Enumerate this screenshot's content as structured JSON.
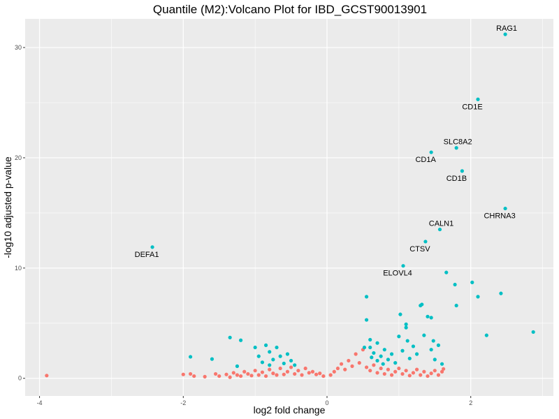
{
  "chart_data": {
    "type": "scatter",
    "title": "Quantile (M2):Volcano Plot for IBD_GCST90013901",
    "xlabel": "log2 fold change",
    "ylabel": "-log10 adjusted p-value",
    "xlim": [
      -4.2,
      3.15
    ],
    "ylim": [
      -1.6,
      32.6
    ],
    "x_ticks": [
      {
        "value": -4,
        "label": "-4"
      },
      {
        "value": -2,
        "label": "-2"
      },
      {
        "value": 0,
        "label": "0"
      },
      {
        "value": 2,
        "label": "2"
      }
    ],
    "y_ticks": [
      {
        "value": 0,
        "label": "0"
      },
      {
        "value": 10,
        "label": "10"
      },
      {
        "value": 20,
        "label": "20"
      },
      {
        "value": 30,
        "label": "30"
      }
    ],
    "grid": true,
    "legend": "none",
    "colors": {
      "background": "#ebebeb",
      "grid": "#ffffff",
      "not_significant": "#f8766d",
      "significant": "#00bfc4"
    },
    "series": [
      {
        "color_key": "not_significant",
        "points": [
          [
            -3.9,
            0.25
          ],
          [
            -2.0,
            0.35
          ],
          [
            -1.9,
            0.4
          ],
          [
            -1.85,
            0.2
          ],
          [
            -1.7,
            0.15
          ],
          [
            -1.55,
            0.4
          ],
          [
            -1.5,
            0.2
          ],
          [
            -1.4,
            0.35
          ],
          [
            -1.35,
            0.1
          ],
          [
            -1.3,
            0.5
          ],
          [
            -1.25,
            0.3
          ],
          [
            -1.2,
            0.2
          ],
          [
            -1.15,
            0.6
          ],
          [
            -1.1,
            0.4
          ],
          [
            -1.05,
            0.25
          ],
          [
            -1.0,
            0.7
          ],
          [
            -0.95,
            0.3
          ],
          [
            -0.9,
            0.55
          ],
          [
            -0.85,
            0.2
          ],
          [
            -0.8,
            0.8
          ],
          [
            -0.75,
            0.45
          ],
          [
            -0.7,
            0.3
          ],
          [
            -0.65,
            0.9
          ],
          [
            -0.6,
            0.35
          ],
          [
            -0.55,
            0.6
          ],
          [
            -0.5,
            1.0
          ],
          [
            -0.45,
            0.4
          ],
          [
            -0.4,
            0.7
          ],
          [
            -0.35,
            0.3
          ],
          [
            -0.3,
            0.9
          ],
          [
            -0.25,
            0.5
          ],
          [
            -0.2,
            0.6
          ],
          [
            -0.15,
            0.35
          ],
          [
            -0.1,
            0.45
          ],
          [
            -0.05,
            0.2
          ],
          [
            0.05,
            0.3
          ],
          [
            0.1,
            0.6
          ],
          [
            0.15,
            0.9
          ],
          [
            0.2,
            1.3
          ],
          [
            0.25,
            0.8
          ],
          [
            0.3,
            1.6
          ],
          [
            0.35,
            1.1
          ],
          [
            0.4,
            2.2
          ],
          [
            0.45,
            1.4
          ],
          [
            0.5,
            2.6
          ],
          [
            0.55,
            1.0
          ],
          [
            0.6,
            0.7
          ],
          [
            0.65,
            1.2
          ],
          [
            0.7,
            0.5
          ],
          [
            0.75,
            0.9
          ],
          [
            0.8,
            0.4
          ],
          [
            0.85,
            0.8
          ],
          [
            0.9,
            0.3
          ],
          [
            0.95,
            0.6
          ],
          [
            1.0,
            0.9
          ],
          [
            1.05,
            0.4
          ],
          [
            1.1,
            0.7
          ],
          [
            1.15,
            0.25
          ],
          [
            1.2,
            0.5
          ],
          [
            1.25,
            0.8
          ],
          [
            1.3,
            0.3
          ],
          [
            1.35,
            0.6
          ],
          [
            1.4,
            0.2
          ],
          [
            1.45,
            0.45
          ],
          [
            1.5,
            0.7
          ],
          [
            1.55,
            0.3
          ],
          [
            1.6,
            0.6
          ],
          [
            1.62,
            0.85
          ]
        ]
      },
      {
        "color_key": "significant",
        "points": [
          [
            -1.9,
            1.95
          ],
          [
            -1.6,
            1.75
          ],
          [
            -1.35,
            3.7
          ],
          [
            -1.2,
            3.45
          ],
          [
            -1.25,
            1.1
          ],
          [
            -1.0,
            2.8
          ],
          [
            -0.95,
            2.0
          ],
          [
            -0.85,
            3.0
          ],
          [
            -0.8,
            2.4
          ],
          [
            -0.75,
            1.7
          ],
          [
            -0.7,
            2.8
          ],
          [
            -0.65,
            2.0
          ],
          [
            -0.6,
            1.35
          ],
          [
            -0.55,
            2.2
          ],
          [
            -0.5,
            1.6
          ],
          [
            -0.45,
            1.2
          ],
          [
            -0.9,
            1.45
          ],
          [
            -0.8,
            1.2
          ],
          [
            0.52,
            2.8
          ],
          [
            0.55,
            5.3
          ],
          [
            0.55,
            7.4
          ],
          [
            0.6,
            3.5
          ],
          [
            0.62,
            1.9
          ],
          [
            0.65,
            2.3
          ],
          [
            0.7,
            1.6
          ],
          [
            0.7,
            3.2
          ],
          [
            0.75,
            2.0
          ],
          [
            0.78,
            1.3
          ],
          [
            0.8,
            2.6
          ],
          [
            0.85,
            1.7
          ],
          [
            0.9,
            2.2
          ],
          [
            0.95,
            1.4
          ],
          [
            1.0,
            3.8
          ],
          [
            1.02,
            5.8
          ],
          [
            1.05,
            2.5
          ],
          [
            1.1,
            4.9
          ],
          [
            1.1,
            4.6
          ],
          [
            1.12,
            3.4
          ],
          [
            1.15,
            1.8
          ],
          [
            1.2,
            2.9
          ],
          [
            1.25,
            2.2
          ],
          [
            1.3,
            6.6
          ],
          [
            1.32,
            6.7
          ],
          [
            1.35,
            3.9
          ],
          [
            1.4,
            5.6
          ],
          [
            1.45,
            5.5
          ],
          [
            1.45,
            2.6
          ],
          [
            1.48,
            3.4
          ],
          [
            1.5,
            1.7
          ],
          [
            1.55,
            3.0
          ],
          [
            1.6,
            1.3
          ],
          [
            1.66,
            9.6
          ],
          [
            1.78,
            8.5
          ],
          [
            1.8,
            6.6
          ],
          [
            2.02,
            8.7
          ],
          [
            2.1,
            7.4
          ],
          [
            2.22,
            3.9
          ],
          [
            2.42,
            7.7
          ],
          [
            2.87,
            4.2
          ],
          [
            0.6,
            2.8
          ]
        ]
      }
    ],
    "labeled_genes": [
      {
        "gene": "RAG1",
        "x": 2.48,
        "y": 31.2
      },
      {
        "gene": "CD1E",
        "x": 2.1,
        "y": 25.3
      },
      {
        "gene": "SLC8A2",
        "x": 1.8,
        "y": 20.9
      },
      {
        "gene": "CD1A",
        "x": 1.45,
        "y": 20.5
      },
      {
        "gene": "CD1B",
        "x": 1.88,
        "y": 18.8
      },
      {
        "gene": "CHRNA3",
        "x": 2.48,
        "y": 15.4
      },
      {
        "gene": "CALN1",
        "x": 1.57,
        "y": 13.5
      },
      {
        "gene": "CTSV",
        "x": 1.37,
        "y": 12.4
      },
      {
        "gene": "DEFA1",
        "x": -2.43,
        "y": 11.9
      },
      {
        "gene": "ELOVL4",
        "x": 1.06,
        "y": 10.2
      }
    ]
  }
}
